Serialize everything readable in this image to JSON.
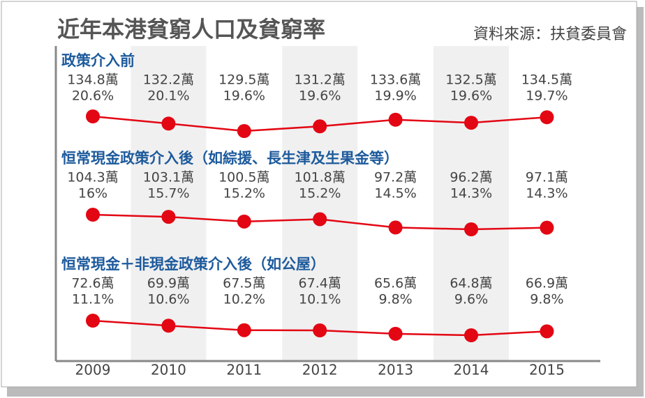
{
  "chart_data": {
    "type": "line",
    "title": "近年本港貧窮人口及貧窮率",
    "source": "資料來源：扶貧委員會",
    "categories": [
      "2009",
      "2010",
      "2011",
      "2012",
      "2013",
      "2014",
      "2015"
    ],
    "series": [
      {
        "name": "政策介入前",
        "color": "#e30613",
        "values": [
          134.8,
          132.2,
          129.5,
          131.2,
          133.6,
          132.5,
          134.5
        ],
        "value_labels": [
          "134.8萬",
          "132.2萬",
          "129.5萬",
          "131.2萬",
          "133.6萬",
          "132.5萬",
          "134.5萬"
        ],
        "rates": [
          20.6,
          20.1,
          19.6,
          19.6,
          19.9,
          19.6,
          19.7
        ],
        "rate_labels": [
          "20.6%",
          "20.1%",
          "19.6%",
          "19.6%",
          "19.9%",
          "19.6%",
          "19.7%"
        ]
      },
      {
        "name": "恒常現金政策介入後（如綜援、長生津及生果金等）",
        "color": "#e30613",
        "values": [
          104.3,
          103.1,
          100.5,
          101.8,
          97.2,
          96.2,
          97.1
        ],
        "value_labels": [
          "104.3萬",
          "103.1萬",
          "100.5萬",
          "101.8萬",
          "97.2萬",
          "96.2萬",
          "97.1萬"
        ],
        "rates": [
          16,
          15.7,
          15.2,
          15.2,
          14.5,
          14.3,
          14.3
        ],
        "rate_labels": [
          "16%",
          "15.7%",
          "15.2%",
          "15.2%",
          "14.5%",
          "14.3%",
          "14.3%"
        ]
      },
      {
        "name": "恒常現金＋非現金政策介入後（如公屋）",
        "color": "#e30613",
        "values": [
          72.6,
          69.9,
          67.5,
          67.4,
          65.6,
          64.8,
          66.9
        ],
        "value_labels": [
          "72.6萬",
          "69.9萬",
          "67.5萬",
          "67.4萬",
          "65.6萬",
          "64.8萬",
          "66.9萬"
        ],
        "rates": [
          11.1,
          10.6,
          10.2,
          10.1,
          9.8,
          9.6,
          9.8
        ],
        "rate_labels": [
          "11.1%",
          "10.6%",
          "10.2%",
          "10.1%",
          "9.8%",
          "9.6%",
          "9.8%"
        ]
      }
    ]
  }
}
